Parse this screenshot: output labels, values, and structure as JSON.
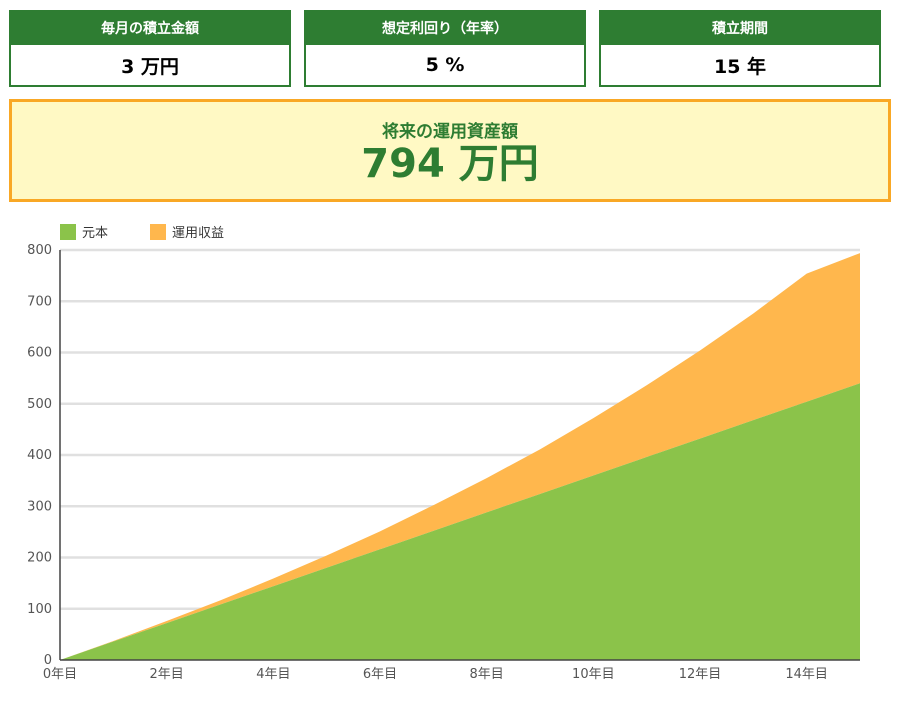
{
  "inputs": [
    {
      "label": "毎月の積立金額",
      "value": "3 万円"
    },
    {
      "label": "想定利回り（年率）",
      "value": "5 %"
    },
    {
      "label": "積立期間",
      "value": "15 年"
    }
  ],
  "result": {
    "label": "将来の運用資産額",
    "value": "794 万円"
  },
  "colors": {
    "accent_green": "#2e7d32",
    "principal": "#8bc34a",
    "gain": "#ffb74d",
    "result_bg": "#fff9c4",
    "result_border": "#f9a825"
  },
  "chart_data": {
    "type": "area",
    "stacked": true,
    "x": [
      0,
      1,
      2,
      3,
      4,
      5,
      6,
      7,
      8,
      9,
      10,
      11,
      12,
      13,
      14,
      15
    ],
    "x_tick_labels": [
      "0年目",
      "2年目",
      "4年目",
      "6年目",
      "8年目",
      "10年目",
      "12年目",
      "14年目"
    ],
    "x_tick_values": [
      0,
      2,
      4,
      6,
      8,
      10,
      12,
      14
    ],
    "ylim": [
      0,
      800
    ],
    "y_ticks": [
      0,
      100,
      200,
      300,
      400,
      500,
      600,
      700,
      800
    ],
    "grid": true,
    "legend_position": "top-left",
    "series": [
      {
        "name": "元本",
        "values": [
          0,
          36,
          72,
          108,
          144,
          180,
          216,
          252,
          288,
          324,
          360,
          396,
          432,
          468,
          504,
          540
        ],
        "color": "#8bc34a"
      },
      {
        "name": "運用収益",
        "values": [
          0,
          1,
          4,
          8,
          15,
          24,
          35,
          50,
          67,
          87,
          112,
          140,
          172,
          208,
          250,
          254
        ],
        "color": "#ffb74d"
      }
    ]
  }
}
